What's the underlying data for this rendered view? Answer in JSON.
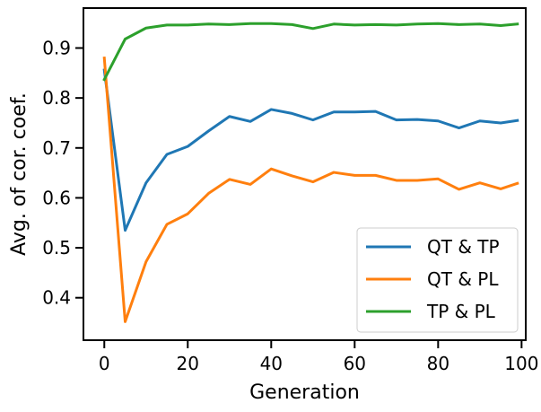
{
  "chart_data": {
    "type": "line",
    "xlabel": "Generation",
    "ylabel": "Avg. of cor. coef.",
    "xlim": [
      -5,
      101
    ],
    "ylim": [
      0.315,
      0.98
    ],
    "xticks": [
      0,
      20,
      40,
      60,
      80,
      100
    ],
    "yticks": [
      0.4,
      0.5,
      0.6,
      0.7,
      0.8,
      0.9
    ],
    "grid": false,
    "legend_position": "lower-right",
    "x": [
      0,
      5,
      10,
      15,
      20,
      25,
      30,
      35,
      40,
      45,
      50,
      55,
      60,
      65,
      70,
      75,
      80,
      85,
      90,
      95,
      99
    ],
    "series": [
      {
        "name": "QT & TP",
        "color": "#1f77b4",
        "values": [
          0.856,
          0.535,
          0.63,
          0.687,
          0.703,
          0.734,
          0.763,
          0.753,
          0.777,
          0.769,
          0.756,
          0.772,
          0.772,
          0.773,
          0.756,
          0.757,
          0.754,
          0.74,
          0.754,
          0.75,
          0.755
        ]
      },
      {
        "name": "QT & PL",
        "color": "#ff7f0e",
        "values": [
          0.88,
          0.352,
          0.472,
          0.547,
          0.568,
          0.609,
          0.637,
          0.627,
          0.658,
          0.644,
          0.632,
          0.651,
          0.645,
          0.645,
          0.635,
          0.635,
          0.638,
          0.617,
          0.63,
          0.618,
          0.629
        ]
      },
      {
        "name": "TP & PL",
        "color": "#2ca02c",
        "values": [
          0.837,
          0.918,
          0.94,
          0.946,
          0.946,
          0.948,
          0.947,
          0.949,
          0.949,
          0.947,
          0.939,
          0.948,
          0.946,
          0.947,
          0.946,
          0.948,
          0.949,
          0.947,
          0.948,
          0.945,
          0.948
        ]
      }
    ]
  }
}
